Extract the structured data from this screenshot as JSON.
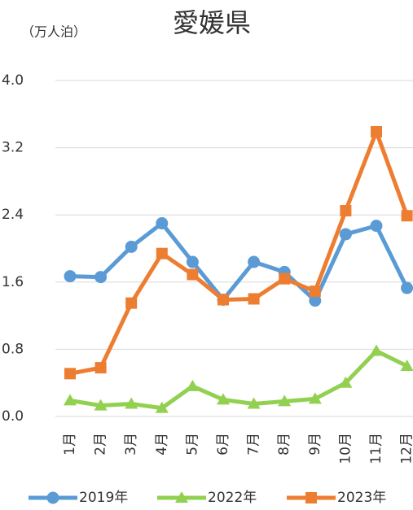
{
  "chart_data": {
    "type": "line",
    "title": "愛媛県",
    "y_label": "（万人泊）",
    "categories": [
      "1月",
      "2月",
      "3月",
      "4月",
      "5月",
      "6月",
      "7月",
      "8月",
      "9月",
      "10月",
      "11月",
      "12月"
    ],
    "series": [
      {
        "name": "2019年",
        "color": "#5b9bd5",
        "marker": "circle",
        "values": [
          1.67,
          1.66,
          2.02,
          2.3,
          1.84,
          1.39,
          1.84,
          1.72,
          1.38,
          2.17,
          2.27,
          1.53
        ]
      },
      {
        "name": "2022年",
        "color": "#92d050",
        "marker": "triangle",
        "values": [
          0.19,
          0.13,
          0.15,
          0.1,
          0.36,
          0.2,
          0.15,
          0.18,
          0.21,
          0.4,
          0.78,
          0.6
        ]
      },
      {
        "name": "2023年",
        "color": "#ed7d31",
        "marker": "square",
        "values": [
          0.51,
          0.58,
          1.35,
          1.94,
          1.69,
          1.39,
          1.4,
          1.64,
          1.49,
          2.45,
          3.39,
          2.39
        ]
      }
    ],
    "ylim": [
      0,
      4
    ],
    "yticks": [
      {
        "value": 0,
        "label": "0.0"
      },
      0.8,
      1.6,
      2.4,
      3.2,
      {
        "value": 4,
        "label": "4.0"
      }
    ],
    "grid": true,
    "legend": "bottom"
  }
}
